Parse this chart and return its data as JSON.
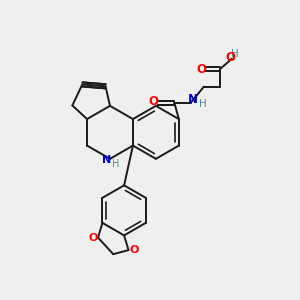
{
  "background_color": "#efefef",
  "bond_color": "#1a1a1a",
  "O_color": "#ff0000",
  "N_color": "#0000cc",
  "H_color": "#4a9090",
  "figsize": [
    3.0,
    3.0
  ],
  "dpi": 100,
  "xlim": [
    0,
    10
  ],
  "ylim": [
    0,
    10
  ]
}
